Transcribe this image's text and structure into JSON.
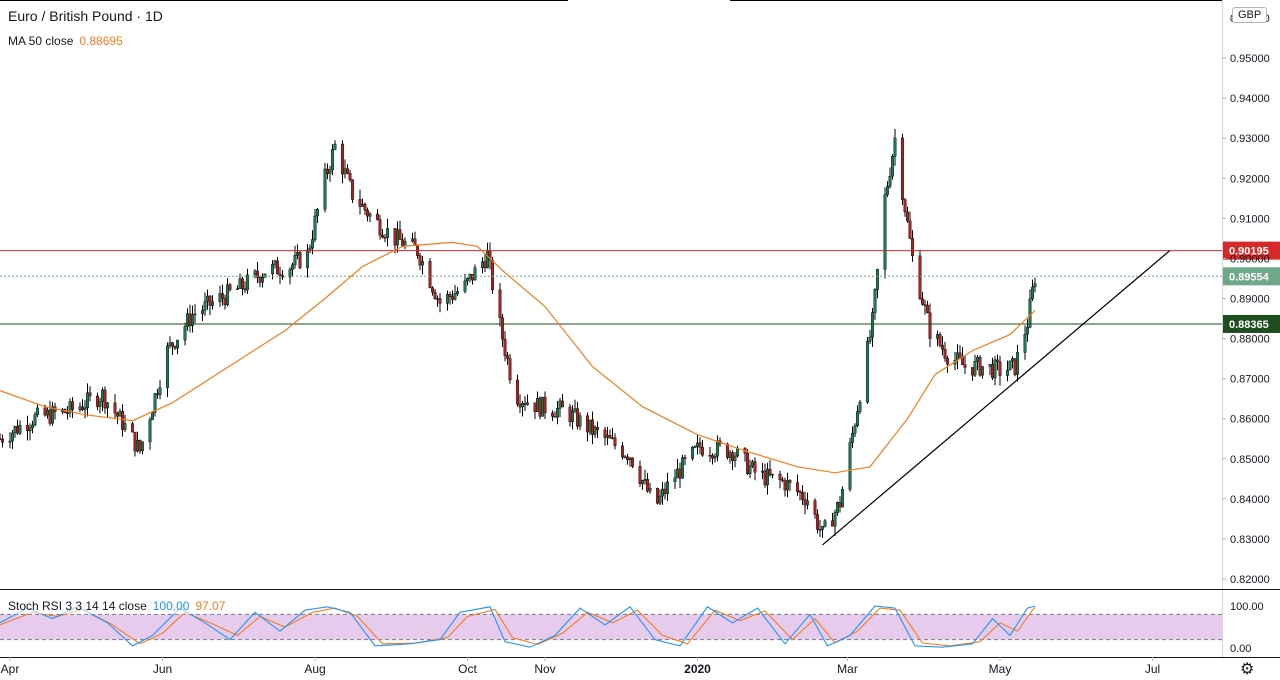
{
  "header": {
    "title": "Euro / British Pound · 1D",
    "ma_label": "MA 50 close",
    "ma_value": "0.88695",
    "currency": "GBP"
  },
  "oscillator": {
    "label": "Stoch RSI 3 3 14 14 close",
    "k_value": "100.00",
    "d_value": "97.07",
    "ticks": [
      "100.00",
      "0.00"
    ],
    "upper_band": 80,
    "lower_band": 20
  },
  "colors": {
    "up": "#26a69a",
    "up_body": "#1b7a4b",
    "down": "#b11f1f",
    "ma": "#f57c1f",
    "red_level": "#d42a2a",
    "green_level": "#1e4d1e",
    "last_price": "#6fa889",
    "trendline": "#000000",
    "rsi_k": "#2196f3",
    "rsi_d": "#f57c1f",
    "rsi_band": "#e1bee7"
  },
  "settings_icon": "gear-icon",
  "chart_data": {
    "type": "candlestick",
    "symbol": "EURGBP",
    "timeframe": "1D",
    "x_labels": [
      "Apr",
      "Jun",
      "Aug",
      "Oct",
      "Nov",
      "2020",
      "Mar",
      "May",
      "Jul"
    ],
    "y_ticks": [
      "0.95000",
      "0.94000",
      "0.93000",
      "0.92000",
      "0.91000",
      "0.90000",
      "0.89000",
      "0.88000",
      "0.87000",
      "0.86000",
      "0.85000",
      "0.84000",
      "0.83000",
      "0.82000"
    ],
    "ylim": [
      0.8175,
      0.9645
    ],
    "levels": [
      {
        "name": "resistance",
        "value": 0.90195,
        "label": "0.90195"
      },
      {
        "name": "last-price",
        "value": 0.89554,
        "label": "0.89554"
      },
      {
        "name": "support",
        "value": 0.88365,
        "label": "0.88365"
      }
    ],
    "close_path": [
      [
        "2019-03-28",
        0.855
      ],
      [
        "2019-04-10",
        0.86
      ],
      [
        "2019-04-25",
        0.862
      ],
      [
        "2019-05-08",
        0.866
      ],
      [
        "2019-05-16",
        0.859
      ],
      [
        "2019-05-23",
        0.852
      ],
      [
        "2019-06-03",
        0.877
      ],
      [
        "2019-06-13",
        0.886
      ],
      [
        "2019-06-24",
        0.89
      ],
      [
        "2019-07-03",
        0.893
      ],
      [
        "2019-07-12",
        0.897
      ],
      [
        "2019-07-22",
        0.898
      ],
      [
        "2019-07-29",
        0.901
      ],
      [
        "2019-08-05",
        0.92
      ],
      [
        "2019-08-09",
        0.928
      ],
      [
        "2019-08-16",
        0.916
      ],
      [
        "2019-08-24",
        0.91
      ],
      [
        "2019-09-02",
        0.905
      ],
      [
        "2019-09-11",
        0.902
      ],
      [
        "2019-09-20",
        0.889
      ],
      [
        "2019-09-30",
        0.893
      ],
      [
        "2019-10-09",
        0.901
      ],
      [
        "2019-10-13",
        0.886
      ],
      [
        "2019-10-20",
        0.866
      ],
      [
        "2019-10-30",
        0.863
      ],
      [
        "2019-11-09",
        0.862
      ],
      [
        "2019-11-20",
        0.857
      ],
      [
        "2019-12-05",
        0.851
      ],
      [
        "2019-12-15",
        0.838
      ],
      [
        "2019-12-22",
        0.845
      ],
      [
        "2020-01-02",
        0.853
      ],
      [
        "2020-01-15",
        0.852
      ],
      [
        "2020-01-25",
        0.846
      ],
      [
        "2020-02-05",
        0.844
      ],
      [
        "2020-02-14",
        0.84
      ],
      [
        "2020-02-20",
        0.831
      ],
      [
        "2020-02-27",
        0.839
      ],
      [
        "2020-03-05",
        0.863
      ],
      [
        "2020-03-11",
        0.884
      ],
      [
        "2020-03-16",
        0.915
      ],
      [
        "2020-03-20",
        0.93
      ],
      [
        "2020-03-27",
        0.9
      ],
      [
        "2020-04-03",
        0.882
      ],
      [
        "2020-04-10",
        0.876
      ],
      [
        "2020-04-17",
        0.873
      ],
      [
        "2020-04-24",
        0.873
      ],
      [
        "2020-05-01",
        0.872
      ],
      [
        "2020-05-07",
        0.873
      ],
      [
        "2020-05-12",
        0.884
      ],
      [
        "2020-05-15",
        0.8955
      ]
    ],
    "ma_path": [
      [
        "2019-03-28",
        0.867
      ],
      [
        "2019-04-15",
        0.863
      ],
      [
        "2019-05-01",
        0.861
      ],
      [
        "2019-05-20",
        0.8595
      ],
      [
        "2019-06-05",
        0.864
      ],
      [
        "2019-06-25",
        0.872
      ],
      [
        "2019-07-20",
        0.882
      ],
      [
        "2019-08-05",
        0.89
      ],
      [
        "2019-08-20",
        0.898
      ],
      [
        "2019-09-05",
        0.903
      ],
      [
        "2019-09-25",
        0.904
      ],
      [
        "2019-10-05",
        0.903
      ],
      [
        "2019-10-15",
        0.897
      ],
      [
        "2019-11-01",
        0.888
      ],
      [
        "2019-11-20",
        0.873
      ],
      [
        "2019-12-10",
        0.863
      ],
      [
        "2020-01-01",
        0.856
      ],
      [
        "2020-01-20",
        0.852
      ],
      [
        "2020-02-10",
        0.848
      ],
      [
        "2020-02-25",
        0.8465
      ],
      [
        "2020-03-10",
        0.848
      ],
      [
        "2020-03-25",
        0.86
      ],
      [
        "2020-04-05",
        0.871
      ],
      [
        "2020-04-20",
        0.877
      ],
      [
        "2020-05-05",
        0.881
      ],
      [
        "2020-05-15",
        0.887
      ]
    ],
    "trendline": [
      [
        "2020-02-20",
        0.8285
      ],
      [
        "2020-07-08",
        0.902
      ]
    ],
    "stoch_rsi": {
      "k_value": 100.0,
      "d_value": 97.07,
      "k_path": [
        [
          "2019-03-28",
          60
        ],
        [
          "2019-04-08",
          95
        ],
        [
          "2019-04-18",
          70
        ],
        [
          "2019-04-28",
          98
        ],
        [
          "2019-05-10",
          60
        ],
        [
          "2019-05-20",
          5
        ],
        [
          "2019-05-28",
          30
        ],
        [
          "2019-06-08",
          95
        ],
        [
          "2019-06-18",
          60
        ],
        [
          "2019-06-28",
          20
        ],
        [
          "2019-07-08",
          85
        ],
        [
          "2019-07-18",
          40
        ],
        [
          "2019-07-28",
          90
        ],
        [
          "2019-08-06",
          98
        ],
        [
          "2019-08-15",
          85
        ],
        [
          "2019-08-25",
          5
        ],
        [
          "2019-09-08",
          10
        ],
        [
          "2019-09-20",
          20
        ],
        [
          "2019-09-28",
          85
        ],
        [
          "2019-10-10",
          98
        ],
        [
          "2019-10-16",
          15
        ],
        [
          "2019-10-26",
          2
        ],
        [
          "2019-11-05",
          30
        ],
        [
          "2019-11-15",
          95
        ],
        [
          "2019-11-25",
          55
        ],
        [
          "2019-12-05",
          98
        ],
        [
          "2019-12-15",
          20
        ],
        [
          "2019-12-25",
          5
        ],
        [
          "2020-01-05",
          98
        ],
        [
          "2020-01-15",
          60
        ],
        [
          "2020-01-25",
          95
        ],
        [
          "2020-02-05",
          10
        ],
        [
          "2020-02-15",
          80
        ],
        [
          "2020-02-22",
          5
        ],
        [
          "2020-03-02",
          30
        ],
        [
          "2020-03-12",
          100
        ],
        [
          "2020-03-20",
          95
        ],
        [
          "2020-03-28",
          5
        ],
        [
          "2020-04-08",
          2
        ],
        [
          "2020-04-20",
          10
        ],
        [
          "2020-04-28",
          70
        ],
        [
          "2020-05-05",
          30
        ],
        [
          "2020-05-12",
          95
        ],
        [
          "2020-05-15",
          100
        ]
      ],
      "d_path": [
        [
          "2019-03-28",
          55
        ],
        [
          "2019-04-10",
          85
        ],
        [
          "2019-04-20",
          75
        ],
        [
          "2019-04-30",
          92
        ],
        [
          "2019-05-12",
          55
        ],
        [
          "2019-05-23",
          10
        ],
        [
          "2019-06-01",
          35
        ],
        [
          "2019-06-10",
          85
        ],
        [
          "2019-06-20",
          60
        ],
        [
          "2019-07-01",
          30
        ],
        [
          "2019-07-10",
          75
        ],
        [
          "2019-07-20",
          50
        ],
        [
          "2019-07-31",
          85
        ],
        [
          "2019-08-09",
          95
        ],
        [
          "2019-08-18",
          75
        ],
        [
          "2019-08-28",
          10
        ],
        [
          "2019-09-10",
          12
        ],
        [
          "2019-09-23",
          25
        ],
        [
          "2019-10-01",
          75
        ],
        [
          "2019-10-12",
          92
        ],
        [
          "2019-10-19",
          25
        ],
        [
          "2019-10-29",
          8
        ],
        [
          "2019-11-08",
          35
        ],
        [
          "2019-11-18",
          85
        ],
        [
          "2019-11-28",
          60
        ],
        [
          "2019-12-08",
          90
        ],
        [
          "2019-12-18",
          30
        ],
        [
          "2019-12-28",
          10
        ],
        [
          "2020-01-08",
          90
        ],
        [
          "2020-01-18",
          65
        ],
        [
          "2020-01-28",
          88
        ],
        [
          "2020-02-08",
          20
        ],
        [
          "2020-02-17",
          70
        ],
        [
          "2020-02-25",
          12
        ],
        [
          "2020-03-05",
          40
        ],
        [
          "2020-03-14",
          95
        ],
        [
          "2020-03-22",
          90
        ],
        [
          "2020-03-31",
          12
        ],
        [
          "2020-04-11",
          5
        ],
        [
          "2020-04-23",
          15
        ],
        [
          "2020-05-01",
          60
        ],
        [
          "2020-05-08",
          40
        ],
        [
          "2020-05-14",
          90
        ],
        [
          "2020-05-15",
          97.07
        ]
      ]
    }
  }
}
